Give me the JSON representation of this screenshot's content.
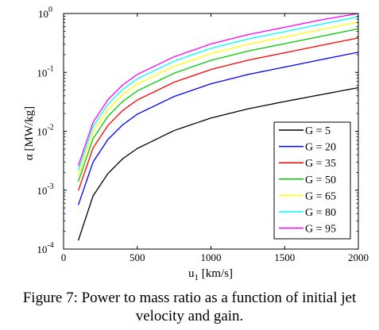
{
  "chart_data": {
    "type": "line",
    "xlabel": "u",
    "xlabel_sub": "1",
    "xlabel_unit": " [km/s]",
    "ylabel": "α [MW/kg]",
    "xlim": [
      0,
      2000
    ],
    "ylim": [
      0.0001,
      1
    ],
    "yscale": "log",
    "grid": false,
    "legend_position": "lower-right",
    "x_ticks": [
      {
        "value": 0,
        "label": "0"
      },
      {
        "value": 500,
        "label": "500"
      },
      {
        "value": 1000,
        "label": "1000"
      },
      {
        "value": 1500,
        "label": "1500"
      },
      {
        "value": 2000,
        "label": "2000"
      }
    ],
    "y_ticks": [
      {
        "value": 0.0001,
        "base": "10",
        "exp": "-4"
      },
      {
        "value": 0.001,
        "base": "10",
        "exp": "-3"
      },
      {
        "value": 0.01,
        "base": "10",
        "exp": "-2"
      },
      {
        "value": 0.1,
        "base": "10",
        "exp": "-1"
      },
      {
        "value": 1,
        "base": "10",
        "exp": "0"
      }
    ],
    "x": [
      100,
      200,
      300,
      400,
      500,
      750,
      1000,
      1250,
      1500,
      1750,
      2000
    ],
    "series": [
      {
        "name": "G = 5",
        "color": "#000000",
        "values": [
          0.00014,
          0.0008,
          0.0019,
          0.0034,
          0.0051,
          0.0103,
          0.0168,
          0.024,
          0.032,
          0.042,
          0.055
        ]
      },
      {
        "name": "G = 20",
        "color": "#0000ff",
        "values": [
          0.00056,
          0.003,
          0.0072,
          0.0128,
          0.0195,
          0.039,
          0.064,
          0.092,
          0.123,
          0.165,
          0.22
        ]
      },
      {
        "name": "G = 35",
        "color": "#ff0000",
        "values": [
          0.00098,
          0.0052,
          0.0125,
          0.0224,
          0.034,
          0.068,
          0.112,
          0.161,
          0.215,
          0.288,
          0.385
        ]
      },
      {
        "name": "G = 50",
        "color": "#00cc00",
        "values": [
          0.0014,
          0.0075,
          0.0179,
          0.032,
          0.0485,
          0.097,
          0.16,
          0.23,
          0.307,
          0.411,
          0.55
        ]
      },
      {
        "name": "G = 65",
        "color": "#ffff00",
        "values": [
          0.0018,
          0.0097,
          0.0233,
          0.0416,
          0.063,
          0.126,
          0.208,
          0.299,
          0.399,
          0.534,
          0.715
        ]
      },
      {
        "name": "G = 80",
        "color": "#00ffff",
        "values": [
          0.0022,
          0.012,
          0.0287,
          0.0512,
          0.0776,
          0.155,
          0.256,
          0.368,
          0.491,
          0.658,
          0.88
        ]
      },
      {
        "name": "G = 95",
        "color": "#ff00ff",
        "values": [
          0.0026,
          0.0142,
          0.0341,
          0.0608,
          0.0921,
          0.184,
          0.304,
          0.437,
          0.583,
          0.781,
          1.0
        ]
      }
    ]
  },
  "caption": {
    "line1": "Figure 7: Power to mass ratio as a function of initial jet",
    "line2": "velocity and gain."
  }
}
